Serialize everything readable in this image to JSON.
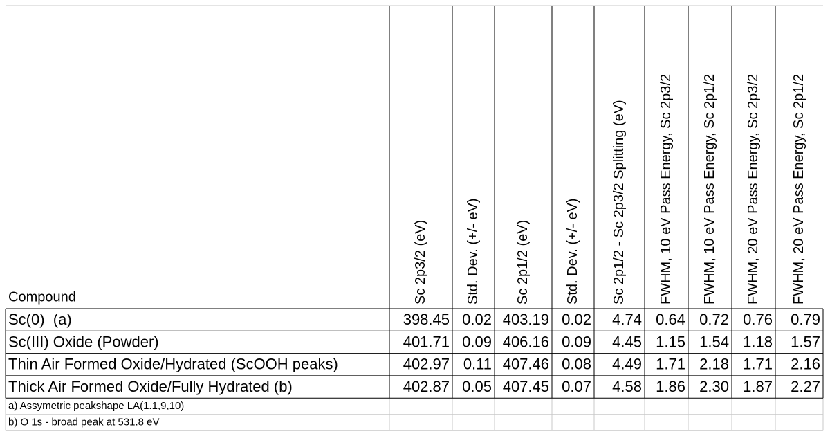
{
  "table": {
    "header": [
      "Compound",
      "Sc 2p3/2 (eV)",
      "Std. Dev. (+/- eV)",
      "Sc 2p1/2 (eV)",
      "Std. Dev. (+/- eV)",
      "Sc 2p1/2 - Sc 2p3/2 Splitting (eV)",
      "FWHM, 10 eV Pass Energy, Sc 2p3/2",
      "FWHM, 10 eV Pass Energy, Sc 2p1/2",
      "FWHM, 20 eV Pass Energy, Sc 2p3/2",
      "FWHM, 20 eV Pass Energy, Sc 2p1/2"
    ],
    "rows": [
      [
        "Sc(0)  (a)",
        "398.45",
        "0.02",
        "403.19",
        "0.02",
        "4.74",
        "0.64",
        "0.72",
        "0.76",
        "0.79"
      ],
      [
        "Sc(III) Oxide (Powder)",
        "401.71",
        "0.09",
        "406.16",
        "0.09",
        "4.45",
        "1.15",
        "1.54",
        "1.18",
        "1.57"
      ],
      [
        "Thin Air Formed Oxide/Hydrated (ScOOH peaks)",
        "402.97",
        "0.11",
        "407.46",
        "0.08",
        "4.49",
        "1.71",
        "2.18",
        "1.71",
        "2.16"
      ],
      [
        "Thick Air Formed Oxide/Fully Hydrated (b)",
        "402.87",
        "0.05",
        "407.45",
        "0.07",
        "4.58",
        "1.86",
        "2.30",
        "1.87",
        "2.27"
      ]
    ],
    "notes": [
      "a) Assymetric peakshape LA(1.1,9,10)",
      "b) O 1s - broad peak at 531.8 eV"
    ]
  }
}
